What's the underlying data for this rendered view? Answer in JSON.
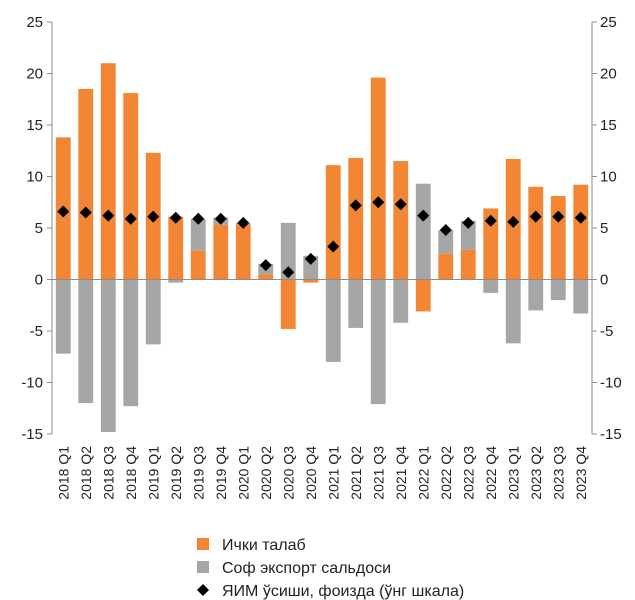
{
  "chart_data": {
    "type": "bar",
    "categories": [
      "2018 Q1",
      "2018 Q2",
      "2018 Q3",
      "2018 Q4",
      "2019 Q1",
      "2019 Q2",
      "2019 Q3",
      "2019 Q4",
      "2020 Q1",
      "2020 Q2",
      "2020 Q3",
      "2020 Q4",
      "2021 Q1",
      "2021 Q2",
      "2021 Q3",
      "2021 Q4",
      "2022 Q1",
      "2022 Q2",
      "2022 Q3",
      "2022 Q4",
      "2023 Q1",
      "2023 Q2",
      "2023 Q3",
      "2023 Q4"
    ],
    "series": [
      {
        "name": "Ички талаб",
        "kind": "bar",
        "color": "#F28634",
        "values": [
          13.8,
          18.5,
          21.0,
          18.1,
          12.3,
          6.1,
          2.8,
          5.3,
          5.3,
          0.5,
          -4.8,
          -0.3,
          11.1,
          11.8,
          19.6,
          11.5,
          -3.1,
          2.5,
          2.9,
          6.9,
          11.7,
          9.0,
          8.1,
          9.2
        ]
      },
      {
        "name": "Соф экспорт сальдоси",
        "kind": "bar",
        "color": "#A6A6A6",
        "values": [
          -7.2,
          -12.0,
          -14.8,
          -12.3,
          -6.3,
          -0.3,
          3.1,
          0.7,
          0.2,
          1.0,
          5.5,
          2.3,
          -8.0,
          -4.7,
          -12.1,
          -4.2,
          9.3,
          2.3,
          2.8,
          -1.3,
          -6.2,
          -3.0,
          -2.0,
          -3.3
        ]
      },
      {
        "name": "ЯИМ ўсиши, фоизда (ўнг шкала)",
        "kind": "marker",
        "color": "#000000",
        "values": [
          6.6,
          6.5,
          6.2,
          5.9,
          6.1,
          6.0,
          5.9,
          5.9,
          5.5,
          1.4,
          0.7,
          2.0,
          3.2,
          7.2,
          7.5,
          7.3,
          6.2,
          4.8,
          5.5,
          5.7,
          5.6,
          6.1,
          6.1,
          6.0
        ]
      }
    ],
    "ylim": [
      -15,
      25
    ],
    "yticks": [
      -15,
      -10,
      -5,
      0,
      5,
      10,
      15,
      20,
      25
    ],
    "y2lim": [
      -15,
      25
    ],
    "y2ticks": [
      -15,
      -10,
      -5,
      0,
      5,
      10,
      15,
      20,
      25
    ],
    "stacked": true,
    "grid": false,
    "legend_position": "bottom"
  }
}
